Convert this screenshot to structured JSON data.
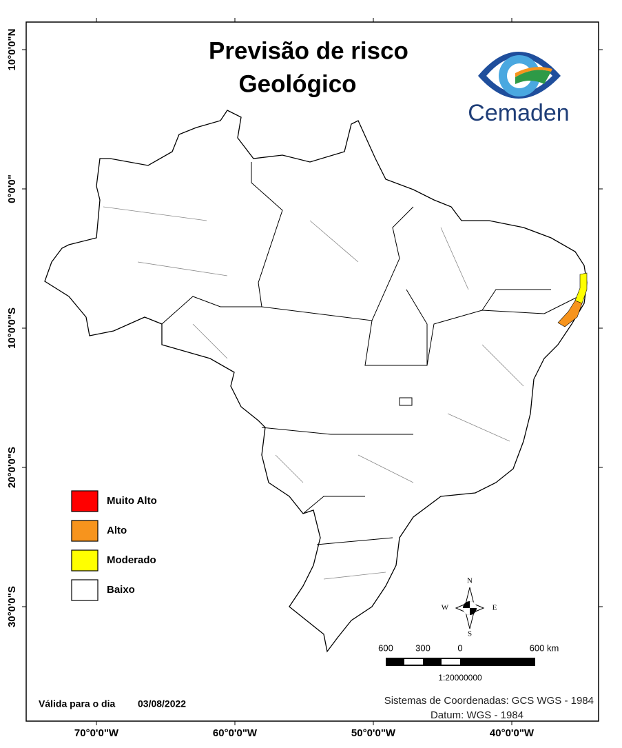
{
  "title": [
    "Previsão de risco",
    "Geológico"
  ],
  "logo": {
    "text": "Cemaden"
  },
  "graticule": {
    "latitudes": [
      {
        "value": 10,
        "label": "10°0'0\"N"
      },
      {
        "value": 0,
        "label": "0°0'0\""
      },
      {
        "value": -10,
        "label": "10°0'0\"S"
      },
      {
        "value": -20,
        "label": "20°0'0\"S"
      },
      {
        "value": -30,
        "label": "30°0'0\"S"
      }
    ],
    "longitudes": [
      {
        "value": -70,
        "label": "70°0'0\"W"
      },
      {
        "value": -60,
        "label": "60°0'0\"W"
      },
      {
        "value": -50,
        "label": "50°0'0\"W"
      },
      {
        "value": -40,
        "label": "40°0'0\"W"
      }
    ]
  },
  "legend": [
    {
      "label": "Muito Alto",
      "color": "#ff0000"
    },
    {
      "label": "Alto",
      "color": "#f7941d"
    },
    {
      "label": "Moderado",
      "color": "#ffff00"
    },
    {
      "label": "Baixo",
      "color": "#ffffff"
    }
  ],
  "compass": {
    "n": "N",
    "s": "S",
    "e": "E",
    "w": "W"
  },
  "scale": {
    "labels": [
      "600",
      "300",
      "0",
      "600 km"
    ],
    "ratio": "1:20000000"
  },
  "footer": {
    "valid_label": "Válida para o dia",
    "date": "03/08/2022",
    "coords": "Sistemas de Coordenadas: GCS WGS - 1984",
    "datum": "Datum: WGS - 1984"
  }
}
